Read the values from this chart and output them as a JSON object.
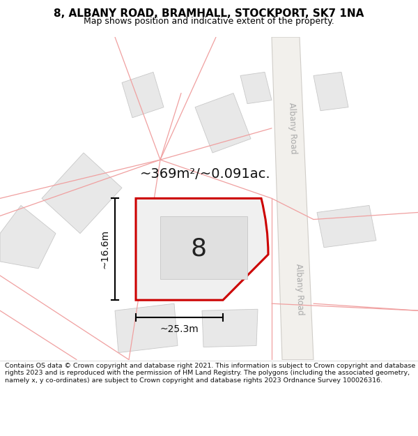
{
  "title_line1": "8, ALBANY ROAD, BRAMHALL, STOCKPORT, SK7 1NA",
  "title_line2": "Map shows position and indicative extent of the property.",
  "footer_text": "Contains OS data © Crown copyright and database right 2021. This information is subject to Crown copyright and database rights 2023 and is reproduced with the permission of HM Land Registry. The polygons (including the associated geometry, namely x, y co-ordinates) are subject to Crown copyright and database rights 2023 Ordnance Survey 100026316.",
  "map_bg_color": "#ffffff",
  "property_fill": "#f0f0f0",
  "property_edge": "#cc0000",
  "neighbor_fill": "#e8e8e8",
  "neighbor_edge": "#c8c8c8",
  "road_line_color": "#f0a0a0",
  "road_band_color": "#f0eeeb",
  "road_band_edge": "#d8d5d0",
  "area_text": "~369m²/~0.091ac.",
  "label_number": "8",
  "dim_width": "~25.3m",
  "dim_height": "~16.6m",
  "road_label": "Albany Road",
  "title_fontsize": 11,
  "subtitle_fontsize": 9,
  "footer_fontsize": 6.8
}
